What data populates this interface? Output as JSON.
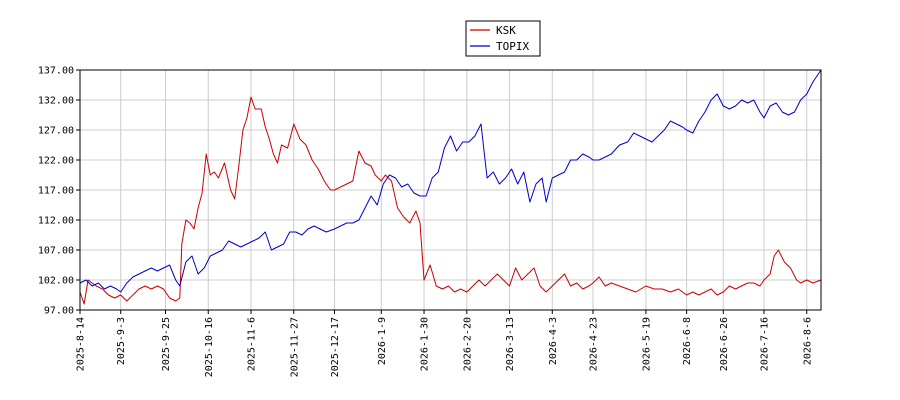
{
  "chart_data": {
    "type": "line",
    "title": "",
    "xlabel": "",
    "ylabel": "",
    "grid": true,
    "legend_position": "top-center",
    "ylim": [
      97.0,
      137.0
    ],
    "yticks": [
      "97.00",
      "102.00",
      "107.00",
      "112.00",
      "117.00",
      "122.00",
      "127.00",
      "132.00",
      "137.00"
    ],
    "xlim": [
      "2025-08-14",
      "2026-08-13"
    ],
    "xticks": [
      "2025-8-14",
      "2025-9-3",
      "2025-9-25",
      "2025-10-16",
      "2025-11-6",
      "2025-11-27",
      "2025-12-17",
      "2026-1-9",
      "2026-1-30",
      "2026-2-20",
      "2026-3-13",
      "2026-4-3",
      "2026-4-23",
      "2026-5-19",
      "2026-6-8",
      "2026-6-26",
      "2026-7-16",
      "2026-8-6"
    ],
    "series": [
      {
        "name": "KSK",
        "color": "#cc0000",
        "points": [
          [
            "2025-08-14",
            100
          ],
          [
            "2025-08-16",
            98
          ],
          [
            "2025-08-18",
            102
          ],
          [
            "2025-08-20",
            101.5
          ],
          [
            "2025-08-22",
            101
          ],
          [
            "2025-08-25",
            100.5
          ],
          [
            "2025-08-28",
            99.5
          ],
          [
            "2025-08-31",
            99
          ],
          [
            "2025-09-03",
            99.5
          ],
          [
            "2025-09-06",
            98.5
          ],
          [
            "2025-09-09",
            99.5
          ],
          [
            "2025-09-12",
            100.5
          ],
          [
            "2025-09-15",
            101
          ],
          [
            "2025-09-18",
            100.5
          ],
          [
            "2025-09-21",
            101
          ],
          [
            "2025-09-24",
            100.5
          ],
          [
            "2025-09-27",
            99
          ],
          [
            "2025-09-30",
            98.5
          ],
          [
            "2025-10-02",
            99
          ],
          [
            "2025-10-03",
            108
          ],
          [
            "2025-10-05",
            112
          ],
          [
            "2025-10-07",
            111.5
          ],
          [
            "2025-10-09",
            110.5
          ],
          [
            "2025-10-11",
            114
          ],
          [
            "2025-10-13",
            116.5
          ],
          [
            "2025-10-15",
            123
          ],
          [
            "2025-10-17",
            119.5
          ],
          [
            "2025-10-19",
            120
          ],
          [
            "2025-10-21",
            119
          ],
          [
            "2025-10-24",
            121.5
          ],
          [
            "2025-10-27",
            117
          ],
          [
            "2025-10-29",
            115.5
          ],
          [
            "2025-10-31",
            121
          ],
          [
            "2025-11-02",
            127
          ],
          [
            "2025-11-04",
            129
          ],
          [
            "2025-11-06",
            132.5
          ],
          [
            "2025-11-08",
            130.5
          ],
          [
            "2025-11-11",
            130.5
          ],
          [
            "2025-11-13",
            127.5
          ],
          [
            "2025-11-15",
            125.5
          ],
          [
            "2025-11-17",
            123
          ],
          [
            "2025-11-19",
            121.5
          ],
          [
            "2025-11-21",
            124.5
          ],
          [
            "2025-11-24",
            124
          ],
          [
            "2025-11-27",
            128
          ],
          [
            "2025-11-30",
            125.5
          ],
          [
            "2025-12-03",
            124.5
          ],
          [
            "2025-12-06",
            122
          ],
          [
            "2025-12-09",
            120.5
          ],
          [
            "2025-12-12",
            118.5
          ],
          [
            "2025-12-15",
            117
          ],
          [
            "2025-12-17",
            117
          ],
          [
            "2025-12-20",
            117.5
          ],
          [
            "2025-12-23",
            118
          ],
          [
            "2025-12-26",
            118.5
          ],
          [
            "2025-12-29",
            123.5
          ],
          [
            "2026-01-01",
            121.5
          ],
          [
            "2026-01-04",
            121
          ],
          [
            "2026-01-06",
            119.5
          ],
          [
            "2026-01-09",
            118.5
          ],
          [
            "2026-01-11",
            119.5
          ],
          [
            "2026-01-14",
            118.5
          ],
          [
            "2026-01-17",
            114
          ],
          [
            "2026-01-20",
            112.5
          ],
          [
            "2026-01-23",
            111.5
          ],
          [
            "2026-01-26",
            113.5
          ],
          [
            "2026-01-28",
            111.5
          ],
          [
            "2026-01-30",
            102
          ],
          [
            "2026-02-02",
            104.5
          ],
          [
            "2026-02-05",
            101
          ],
          [
            "2026-02-08",
            100.5
          ],
          [
            "2026-02-11",
            101
          ],
          [
            "2026-02-14",
            100
          ],
          [
            "2026-02-17",
            100.5
          ],
          [
            "2026-02-20",
            100
          ],
          [
            "2026-02-23",
            101
          ],
          [
            "2026-02-26",
            102
          ],
          [
            "2026-03-01",
            101
          ],
          [
            "2026-03-04",
            102
          ],
          [
            "2026-03-07",
            103
          ],
          [
            "2026-03-10",
            102
          ],
          [
            "2026-03-13",
            101
          ],
          [
            "2026-03-16",
            104
          ],
          [
            "2026-03-19",
            102
          ],
          [
            "2026-03-22",
            103
          ],
          [
            "2026-03-25",
            104
          ],
          [
            "2026-03-28",
            101
          ],
          [
            "2026-03-31",
            100
          ],
          [
            "2026-04-03",
            101
          ],
          [
            "2026-04-06",
            102
          ],
          [
            "2026-04-09",
            103
          ],
          [
            "2026-04-12",
            101
          ],
          [
            "2026-04-15",
            101.5
          ],
          [
            "2026-04-18",
            100.5
          ],
          [
            "2026-04-21",
            101
          ],
          [
            "2026-04-23",
            101.5
          ],
          [
            "2026-04-26",
            102.5
          ],
          [
            "2026-04-29",
            101
          ],
          [
            "2026-05-02",
            101.5
          ],
          [
            "2026-05-06",
            101
          ],
          [
            "2026-05-10",
            100.5
          ],
          [
            "2026-05-14",
            100
          ],
          [
            "2026-05-19",
            101
          ],
          [
            "2026-05-23",
            100.5
          ],
          [
            "2026-05-27",
            100.5
          ],
          [
            "2026-05-31",
            100
          ],
          [
            "2026-06-04",
            100.5
          ],
          [
            "2026-06-08",
            99.5
          ],
          [
            "2026-06-11",
            100
          ],
          [
            "2026-06-14",
            99.5
          ],
          [
            "2026-06-17",
            100
          ],
          [
            "2026-06-20",
            100.5
          ],
          [
            "2026-06-23",
            99.5
          ],
          [
            "2026-06-26",
            100
          ],
          [
            "2026-06-29",
            101
          ],
          [
            "2026-07-02",
            100.5
          ],
          [
            "2026-07-05",
            101
          ],
          [
            "2026-07-08",
            101.5
          ],
          [
            "2026-07-11",
            101.5
          ],
          [
            "2026-07-14",
            101
          ],
          [
            "2026-07-16",
            102
          ],
          [
            "2026-07-19",
            103
          ],
          [
            "2026-07-21",
            106
          ],
          [
            "2026-07-23",
            107
          ],
          [
            "2026-07-26",
            105
          ],
          [
            "2026-07-29",
            104
          ],
          [
            "2026-08-01",
            102
          ],
          [
            "2026-08-03",
            101.5
          ],
          [
            "2026-08-06",
            102
          ],
          [
            "2026-08-09",
            101.5
          ],
          [
            "2026-08-13",
            102
          ]
        ]
      },
      {
        "name": "TOPIX",
        "color": "#0000cc",
        "points": [
          [
            "2025-08-14",
            101.5
          ],
          [
            "2025-08-17",
            102
          ],
          [
            "2025-08-20",
            101
          ],
          [
            "2025-08-23",
            101.5
          ],
          [
            "2025-08-26",
            100.5
          ],
          [
            "2025-08-29",
            101
          ],
          [
            "2025-09-01",
            100.5
          ],
          [
            "2025-09-03",
            100
          ],
          [
            "2025-09-06",
            101.5
          ],
          [
            "2025-09-09",
            102.5
          ],
          [
            "2025-09-12",
            103
          ],
          [
            "2025-09-15",
            103.5
          ],
          [
            "2025-09-18",
            104
          ],
          [
            "2025-09-21",
            103.5
          ],
          [
            "2025-09-24",
            104
          ],
          [
            "2025-09-27",
            104.5
          ],
          [
            "2025-09-30",
            102
          ],
          [
            "2025-10-02",
            101
          ],
          [
            "2025-10-05",
            105
          ],
          [
            "2025-10-08",
            106
          ],
          [
            "2025-10-11",
            103
          ],
          [
            "2025-10-14",
            104
          ],
          [
            "2025-10-17",
            106
          ],
          [
            "2025-10-20",
            106.5
          ],
          [
            "2025-10-23",
            107
          ],
          [
            "2025-10-26",
            108.5
          ],
          [
            "2025-10-29",
            108
          ],
          [
            "2025-11-01",
            107.5
          ],
          [
            "2025-11-04",
            108
          ],
          [
            "2025-11-07",
            108.5
          ],
          [
            "2025-11-10",
            109
          ],
          [
            "2025-11-13",
            110
          ],
          [
            "2025-11-16",
            107
          ],
          [
            "2025-11-19",
            107.5
          ],
          [
            "2025-11-22",
            108
          ],
          [
            "2025-11-25",
            110
          ],
          [
            "2025-11-28",
            110
          ],
          [
            "2025-12-01",
            109.5
          ],
          [
            "2025-12-04",
            110.5
          ],
          [
            "2025-12-07",
            111
          ],
          [
            "2025-12-10",
            110.5
          ],
          [
            "2025-12-13",
            110
          ],
          [
            "2025-12-17",
            110.5
          ],
          [
            "2025-12-20",
            111
          ],
          [
            "2025-12-23",
            111.5
          ],
          [
            "2025-12-26",
            111.5
          ],
          [
            "2025-12-29",
            112
          ],
          [
            "2026-01-01",
            114
          ],
          [
            "2026-01-04",
            116
          ],
          [
            "2026-01-07",
            114.5
          ],
          [
            "2026-01-10",
            118
          ],
          [
            "2026-01-13",
            119.5
          ],
          [
            "2026-01-16",
            119
          ],
          [
            "2026-01-19",
            117.5
          ],
          [
            "2026-01-22",
            118
          ],
          [
            "2026-01-25",
            116.5
          ],
          [
            "2026-01-28",
            116
          ],
          [
            "2026-01-31",
            116
          ],
          [
            "2026-02-03",
            119
          ],
          [
            "2026-02-06",
            120
          ],
          [
            "2026-02-09",
            124
          ],
          [
            "2026-02-12",
            126
          ],
          [
            "2026-02-15",
            123.5
          ],
          [
            "2026-02-18",
            125
          ],
          [
            "2026-02-21",
            125
          ],
          [
            "2026-02-24",
            126
          ],
          [
            "2026-02-27",
            128
          ],
          [
            "2026-03-02",
            119
          ],
          [
            "2026-03-05",
            120
          ],
          [
            "2026-03-08",
            118
          ],
          [
            "2026-03-11",
            119
          ],
          [
            "2026-03-14",
            120.5
          ],
          [
            "2026-03-17",
            118
          ],
          [
            "2026-03-20",
            120
          ],
          [
            "2026-03-23",
            115
          ],
          [
            "2026-03-26",
            118
          ],
          [
            "2026-03-29",
            119
          ],
          [
            "2026-03-31",
            115
          ],
          [
            "2026-04-03",
            119
          ],
          [
            "2026-04-06",
            119.5
          ],
          [
            "2026-04-09",
            120
          ],
          [
            "2026-04-12",
            122
          ],
          [
            "2026-04-15",
            122
          ],
          [
            "2026-04-18",
            123
          ],
          [
            "2026-04-21",
            122.5
          ],
          [
            "2026-04-23",
            122
          ],
          [
            "2026-04-26",
            122
          ],
          [
            "2026-04-29",
            122.5
          ],
          [
            "2026-05-02",
            123
          ],
          [
            "2026-05-06",
            124.5
          ],
          [
            "2026-05-10",
            125
          ],
          [
            "2026-05-13",
            126.5
          ],
          [
            "2026-05-16",
            126
          ],
          [
            "2026-05-19",
            125.5
          ],
          [
            "2026-05-22",
            125
          ],
          [
            "2026-05-25",
            126
          ],
          [
            "2026-05-28",
            127
          ],
          [
            "2026-05-31",
            128.5
          ],
          [
            "2026-06-03",
            128
          ],
          [
            "2026-06-06",
            127.5
          ],
          [
            "2026-06-08",
            127
          ],
          [
            "2026-06-11",
            126.5
          ],
          [
            "2026-06-14",
            128.5
          ],
          [
            "2026-06-17",
            130
          ],
          [
            "2026-06-20",
            132
          ],
          [
            "2026-06-23",
            133
          ],
          [
            "2026-06-26",
            131
          ],
          [
            "2026-06-29",
            130.5
          ],
          [
            "2026-07-02",
            131
          ],
          [
            "2026-07-05",
            132
          ],
          [
            "2026-07-08",
            131.5
          ],
          [
            "2026-07-11",
            132
          ],
          [
            "2026-07-14",
            130
          ],
          [
            "2026-07-16",
            129
          ],
          [
            "2026-07-19",
            131
          ],
          [
            "2026-07-22",
            131.5
          ],
          [
            "2026-07-25",
            130
          ],
          [
            "2026-07-28",
            129.5
          ],
          [
            "2026-07-31",
            130
          ],
          [
            "2026-08-03",
            132
          ],
          [
            "2026-08-06",
            133
          ],
          [
            "2026-08-09",
            135
          ],
          [
            "2026-08-13",
            137
          ]
        ]
      }
    ]
  }
}
